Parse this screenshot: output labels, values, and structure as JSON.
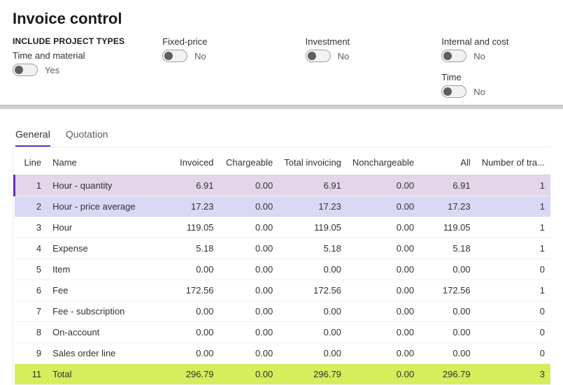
{
  "page_title": "Invoice control",
  "filters": {
    "section_label": "INCLUDE PROJECT TYPES",
    "time_and_material": {
      "label": "Time and material",
      "value_text": "Yes"
    },
    "fixed_price": {
      "label": "Fixed-price",
      "value_text": "No"
    },
    "investment": {
      "label": "Investment",
      "value_text": "No"
    },
    "internal_and_cost": {
      "label": "Internal and cost",
      "value_text": "No"
    },
    "time": {
      "label": "Time",
      "value_text": "No"
    }
  },
  "tabs": {
    "general": "General",
    "quotation": "Quotation"
  },
  "grid": {
    "columns": {
      "line": "Line",
      "name": "Name",
      "invoiced": "Invoiced",
      "chargeable": "Chargeable",
      "total_invoicing": "Total invoicing",
      "nonchargeable": "Nonchargeable",
      "all": "All",
      "num_trans": "Number of tra..."
    },
    "rows": [
      {
        "line": "1",
        "name": "Hour - quantity",
        "invoiced": "6.91",
        "chargeable": "0.00",
        "total_invoicing": "6.91",
        "nonchargeable": "0.00",
        "all": "6.91",
        "num_trans": "1",
        "style": "selected"
      },
      {
        "line": "2",
        "name": "Hour - price average",
        "invoiced": "17.23",
        "chargeable": "0.00",
        "total_invoicing": "17.23",
        "nonchargeable": "0.00",
        "all": "17.23",
        "num_trans": "1",
        "style": "alt"
      },
      {
        "line": "3",
        "name": "Hour",
        "invoiced": "119.05",
        "chargeable": "0.00",
        "total_invoicing": "119.05",
        "nonchargeable": "0.00",
        "all": "119.05",
        "num_trans": "1",
        "style": ""
      },
      {
        "line": "4",
        "name": "Expense",
        "invoiced": "5.18",
        "chargeable": "0.00",
        "total_invoicing": "5.18",
        "nonchargeable": "0.00",
        "all": "5.18",
        "num_trans": "1",
        "style": ""
      },
      {
        "line": "5",
        "name": "Item",
        "invoiced": "0.00",
        "chargeable": "0.00",
        "total_invoicing": "0.00",
        "nonchargeable": "0.00",
        "all": "0.00",
        "num_trans": "0",
        "style": ""
      },
      {
        "line": "6",
        "name": "Fee",
        "invoiced": "172.56",
        "chargeable": "0.00",
        "total_invoicing": "172.56",
        "nonchargeable": "0.00",
        "all": "172.56",
        "num_trans": "1",
        "style": ""
      },
      {
        "line": "7",
        "name": "Fee - subscription",
        "invoiced": "0.00",
        "chargeable": "0.00",
        "total_invoicing": "0.00",
        "nonchargeable": "0.00",
        "all": "0.00",
        "num_trans": "0",
        "style": ""
      },
      {
        "line": "8",
        "name": "On-account",
        "invoiced": "0.00",
        "chargeable": "0.00",
        "total_invoicing": "0.00",
        "nonchargeable": "0.00",
        "all": "0.00",
        "num_trans": "0",
        "style": ""
      },
      {
        "line": "9",
        "name": "Sales order line",
        "invoiced": "0.00",
        "chargeable": "0.00",
        "total_invoicing": "0.00",
        "nonchargeable": "0.00",
        "all": "0.00",
        "num_trans": "0",
        "style": ""
      },
      {
        "line": "11",
        "name": "Total",
        "invoiced": "296.79",
        "chargeable": "0.00",
        "total_invoicing": "296.79",
        "nonchargeable": "0.00",
        "all": "296.79",
        "num_trans": "3",
        "style": "total"
      }
    ]
  },
  "colors": {
    "accent": "#6b2fb3",
    "row_selected_bg": "#e2d6e8",
    "row_alt_bg": "#d9d9f5",
    "row_total_bg": "#d6ed5c",
    "divider_bg": "#d2d0ce"
  }
}
